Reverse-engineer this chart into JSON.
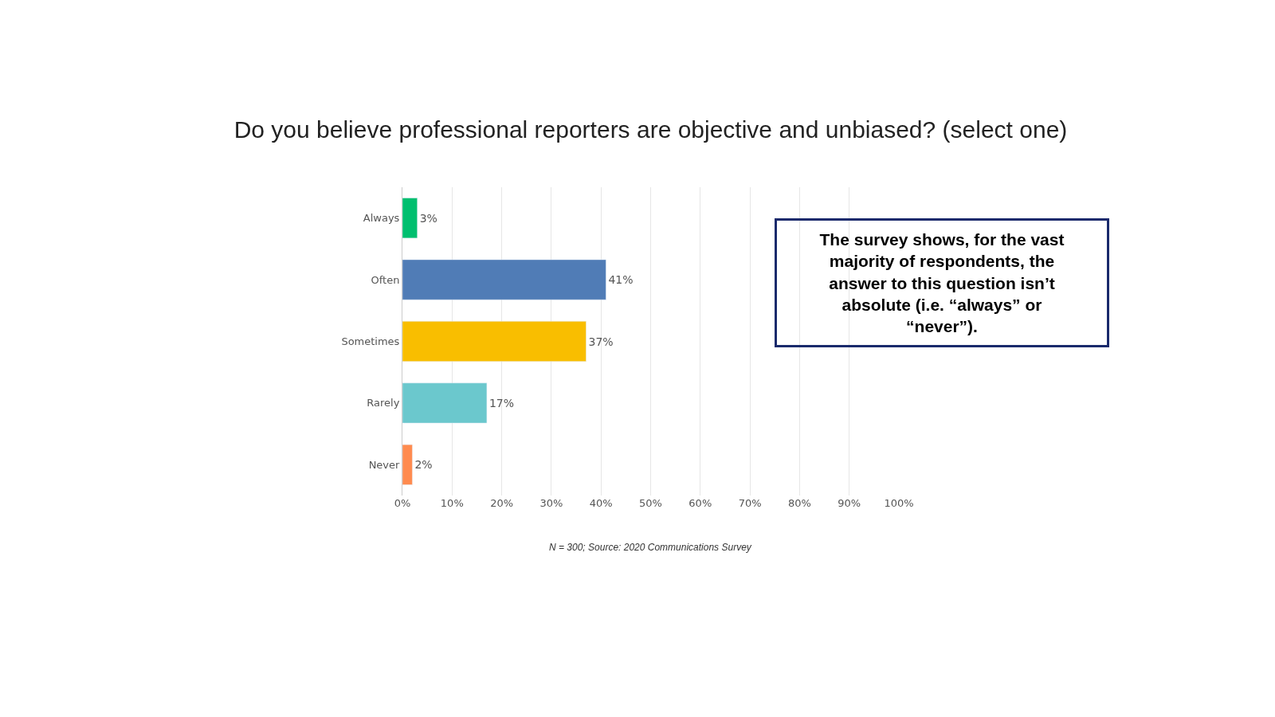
{
  "chart_data": {
    "type": "bar",
    "orientation": "horizontal",
    "title": "Do you believe professional reporters are objective and unbiased? (select one)",
    "categories": [
      "Always",
      "Often",
      "Sometimes",
      "Rarely",
      "Never"
    ],
    "values": [
      3,
      41,
      37,
      17,
      2
    ],
    "value_labels": [
      "3%",
      "41%",
      "37%",
      "17%",
      "2%"
    ],
    "colors": [
      "#00bf6f",
      "#507cb6",
      "#f9be00",
      "#6bc8cd",
      "#ff8b4f"
    ],
    "xlim": [
      0,
      100
    ],
    "xticks": [
      {
        "value": 0,
        "label": "0%"
      },
      {
        "value": 10,
        "label": "10%"
      },
      {
        "value": 20,
        "label": "20%"
      },
      {
        "value": 30,
        "label": "30%"
      },
      {
        "value": 40,
        "label": "40%"
      },
      {
        "value": 50,
        "label": "50%"
      },
      {
        "value": 60,
        "label": "60%"
      },
      {
        "value": 70,
        "label": "70%"
      },
      {
        "value": 80,
        "label": "80%"
      },
      {
        "value": 90,
        "label": "90%"
      },
      {
        "value": 100,
        "label": "100%"
      }
    ],
    "grid": "x",
    "annotations": [
      "The survey shows, for the vast majority of respondents, the answer to this question isn’t absolute (i.e. “always” or “never”).",
      "N = 300; Source: 2020 Communications Survey"
    ]
  }
}
